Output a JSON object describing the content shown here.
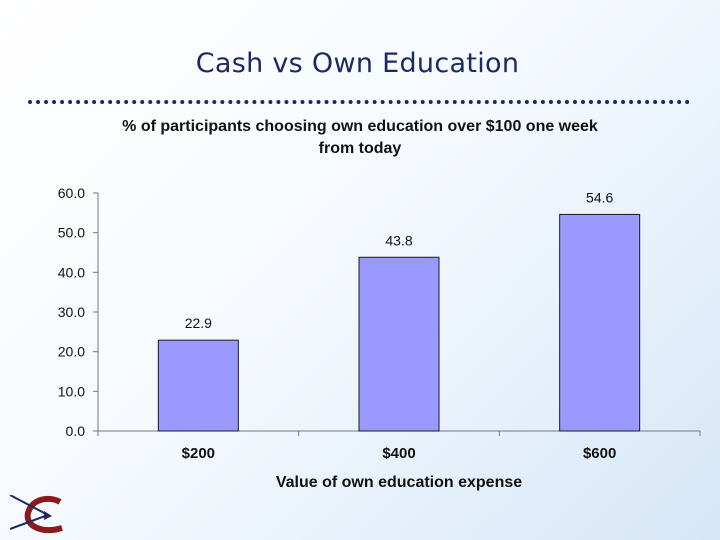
{
  "slide": {
    "title": "Cash vs Own Education"
  },
  "colors": {
    "title": "#1c2a64",
    "bar_fill": "#9999ff",
    "bar_stroke": "#1a1a1a",
    "logo_accent": "#8b1a1a"
  },
  "logo": {
    "icon": "c-arrow-logo"
  },
  "chart_data": {
    "type": "bar",
    "title": "% of participants choosing own education over $100 one week from today",
    "title_lines": [
      "% of participants choosing own education over $100 one week",
      "from today"
    ],
    "xlabel": "Value of own education expense",
    "ylabel": "",
    "categories": [
      "$200",
      "$400",
      "$600"
    ],
    "values": [
      22.9,
      43.8,
      54.6
    ],
    "value_labels": [
      "22.9",
      "43.8",
      "54.6"
    ],
    "ylim": [
      0,
      60
    ],
    "yticks": [
      "0.0",
      "10.0",
      "20.0",
      "30.0",
      "40.0",
      "50.0",
      "60.0"
    ],
    "grid": false,
    "legend": "none"
  }
}
